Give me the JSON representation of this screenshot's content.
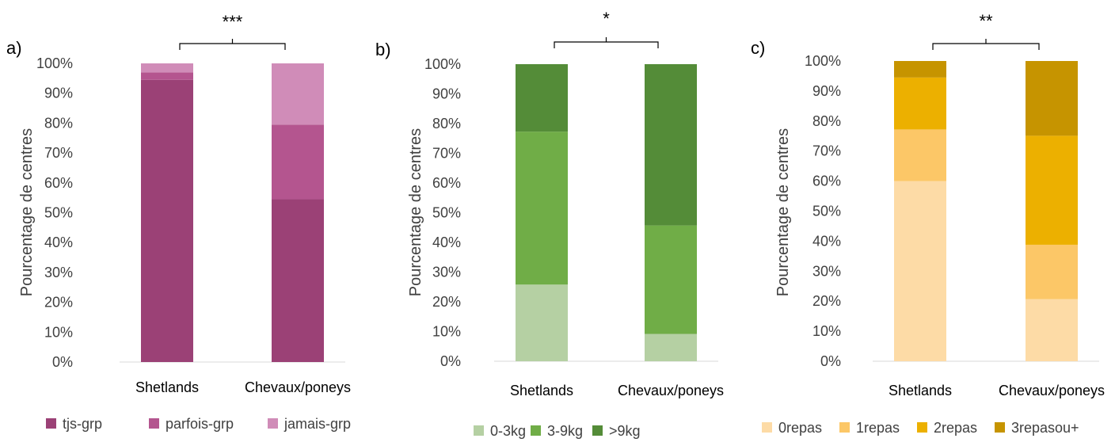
{
  "chart_data": [
    {
      "type": "bar",
      "stacked": true,
      "panel_label": "a)",
      "significance": "***",
      "categories": [
        "Shetlands",
        "Chevaux/poneys"
      ],
      "ylabel": "Pourcentage de centres",
      "ylim": [
        0,
        100
      ],
      "yticks": [
        "0%",
        "10%",
        "20%",
        "30%",
        "40%",
        "50%",
        "60%",
        "70%",
        "80%",
        "90%",
        "100%"
      ],
      "grid": false,
      "legend_position": "bottom",
      "series": [
        {
          "name": "tjs-grp",
          "color": "#9b4176",
          "values": [
            94.5,
            54.5
          ]
        },
        {
          "name": "parfois-grp",
          "color": "#b4558f",
          "values": [
            2.5,
            25
          ]
        },
        {
          "name": "jamais-grp",
          "color": "#d08cb8",
          "values": [
            3,
            20.5
          ]
        }
      ]
    },
    {
      "type": "bar",
      "stacked": true,
      "panel_label": "b)",
      "significance": "*",
      "categories": [
        "Shetlands",
        "Chevaux/poneys"
      ],
      "ylabel": "Pourcentage de centres",
      "ylim": [
        0,
        100
      ],
      "yticks": [
        "0%",
        "10%",
        "20%",
        "30%",
        "40%",
        "50%",
        "60%",
        "70%",
        "80%",
        "90%",
        "100%"
      ],
      "grid": false,
      "legend_position": "bottom",
      "series": [
        {
          "name": "0-3kg",
          "color": "#b5d0a3",
          "values": [
            25.8,
            9.2
          ]
        },
        {
          "name": "3-9kg",
          "color": "#70ad47",
          "values": [
            51.5,
            36.5
          ]
        },
        {
          "name": ">9kg",
          "color": "#548c38",
          "values": [
            22.7,
            54.3
          ]
        }
      ]
    },
    {
      "type": "bar",
      "stacked": true,
      "panel_label": "c)",
      "significance": "**",
      "categories": [
        "Shetlands",
        "Chevaux/poneys"
      ],
      "ylabel": "Pourcentage de centres",
      "ylim": [
        0,
        100
      ],
      "yticks": [
        "0%",
        "10%",
        "20%",
        "30%",
        "40%",
        "50%",
        "60%",
        "70%",
        "80%",
        "90%",
        "100%"
      ],
      "grid": false,
      "legend_position": "bottom",
      "series": [
        {
          "name": "0repas",
          "color": "#fddba6",
          "values": [
            60,
            20.7
          ]
        },
        {
          "name": "1repas",
          "color": "#fcc767",
          "values": [
            17.2,
            18.1
          ]
        },
        {
          "name": "2repas",
          "color": "#ecb000",
          "values": [
            17.3,
            36.3
          ]
        },
        {
          "name": "3repasou+",
          "color": "#c69400",
          "values": [
            5.5,
            24.9
          ]
        }
      ]
    }
  ]
}
